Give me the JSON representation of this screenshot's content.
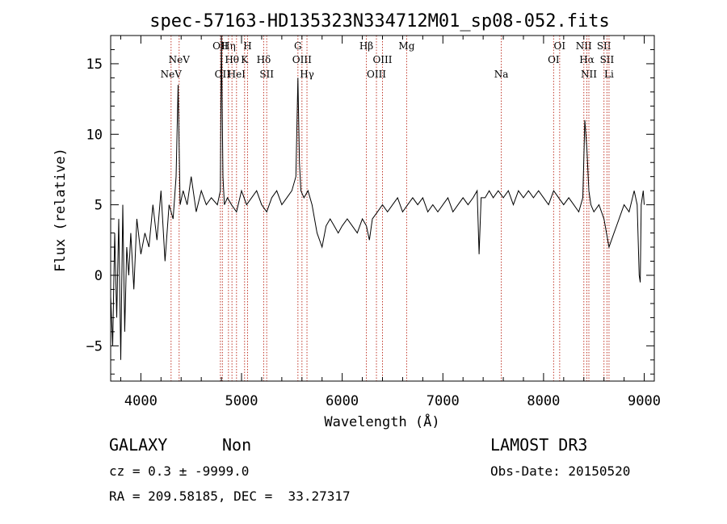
{
  "chart_data": {
    "type": "line",
    "title": "spec-57163-HD135323N334712M01_sp08-052.fits",
    "xlabel": "Wavelength (Å)",
    "ylabel": "Flux (relative)",
    "xlim": [
      3700,
      9100
    ],
    "ylim": [
      -7.5,
      17
    ],
    "xticks": [
      4000,
      5000,
      6000,
      7000,
      8000,
      9000
    ],
    "yticks": [
      -5,
      0,
      5,
      10,
      15
    ],
    "series": [
      {
        "name": "flux",
        "x": [
          3700,
          3720,
          3740,
          3760,
          3780,
          3800,
          3820,
          3840,
          3860,
          3880,
          3900,
          3930,
          3960,
          4000,
          4040,
          4080,
          4120,
          4160,
          4200,
          4240,
          4280,
          4320,
          4350,
          4370,
          4390,
          4420,
          4460,
          4500,
          4550,
          4600,
          4650,
          4700,
          4760,
          4790,
          4800,
          4815,
          4830,
          4860,
          4900,
          4950,
          5000,
          5050,
          5100,
          5150,
          5200,
          5250,
          5300,
          5350,
          5400,
          5450,
          5500,
          5540,
          5560,
          5575,
          5590,
          5620,
          5660,
          5700,
          5750,
          5800,
          5840,
          5880,
          5920,
          5960,
          6000,
          6050,
          6100,
          6150,
          6200,
          6240,
          6270,
          6300,
          6350,
          6400,
          6450,
          6500,
          6550,
          6600,
          6650,
          6700,
          6750,
          6800,
          6850,
          6900,
          6950,
          7000,
          7050,
          7100,
          7150,
          7200,
          7250,
          7300,
          7340,
          7360,
          7380,
          7420,
          7460,
          7500,
          7550,
          7600,
          7650,
          7700,
          7750,
          7800,
          7850,
          7900,
          7950,
          8000,
          8050,
          8100,
          8150,
          8200,
          8250,
          8300,
          8350,
          8390,
          8410,
          8430,
          8450,
          8470,
          8500,
          8550,
          8600,
          8650,
          8700,
          8750,
          8800,
          8850,
          8900,
          8930,
          8950,
          8960,
          8970,
          8990,
          9000
        ],
        "values": [
          -1.5,
          -5,
          3,
          -3,
          4,
          -6,
          5,
          -4,
          2,
          0,
          3,
          -1,
          4,
          1.5,
          3,
          2,
          5,
          2.5,
          6,
          1,
          5,
          4,
          7,
          13.5,
          5,
          6,
          5,
          7,
          4.5,
          6,
          5,
          5.5,
          5,
          6,
          17,
          7,
          5,
          5.5,
          5,
          4.5,
          6,
          5,
          5.5,
          6,
          5,
          4.5,
          5.5,
          6,
          5,
          5.5,
          6,
          7,
          14,
          8,
          6,
          5.5,
          6,
          5,
          3,
          2,
          3.5,
          4,
          3.5,
          3,
          3.5,
          4,
          3.5,
          3,
          4,
          3.5,
          2.5,
          4,
          4.5,
          5,
          4.5,
          5,
          5.5,
          4.5,
          5,
          5.5,
          5,
          5.5,
          4.5,
          5,
          4.5,
          5,
          5.5,
          4.5,
          5,
          5.5,
          5,
          5.5,
          6,
          1.5,
          5.5,
          5.5,
          6,
          5.5,
          6,
          5.5,
          6,
          5,
          6,
          5.5,
          6,
          5.5,
          6,
          5.5,
          5,
          6,
          5.5,
          5,
          5.5,
          5,
          4.5,
          5.5,
          11,
          9,
          6,
          5,
          4.5,
          5,
          4,
          2,
          3,
          4,
          5,
          4.5,
          6,
          5,
          0,
          -0.5,
          5,
          6,
          5
        ]
      }
    ],
    "lines": [
      {
        "wl": 4300,
        "label": "NeV",
        "row": 3
      },
      {
        "wl": 4380,
        "label": "NeV",
        "row": 2
      },
      {
        "wl": 4790,
        "label": "OII",
        "row": 1
      },
      {
        "wl": 4810,
        "label": "OII",
        "row": 3
      },
      {
        "wl": 4870,
        "label": "Hη",
        "row": 1
      },
      {
        "wl": 4905,
        "label": "Hθ",
        "row": 2
      },
      {
        "wl": 4950,
        "label": "HeI",
        "row": 3
      },
      {
        "wl": 5030,
        "label": "K",
        "row": 2
      },
      {
        "wl": 5060,
        "label": "H",
        "row": 1
      },
      {
        "wl": 5220,
        "label": "Hδ",
        "row": 2
      },
      {
        "wl": 5250,
        "label": "SII",
        "row": 3
      },
      {
        "wl": 5560,
        "label": "G",
        "row": 1
      },
      {
        "wl": 5600,
        "label": "OIII",
        "row": 2
      },
      {
        "wl": 5650,
        "label": "Hγ",
        "row": 3
      },
      {
        "wl": 6240,
        "label": "Hβ",
        "row": 1
      },
      {
        "wl": 6340,
        "label": "OIII",
        "row": 3
      },
      {
        "wl": 6400,
        "label": "OIII",
        "row": 2
      },
      {
        "wl": 6640,
        "label": "Mg",
        "row": 1
      },
      {
        "wl": 7580,
        "label": "Na",
        "row": 3
      },
      {
        "wl": 8100,
        "label": "OI",
        "row": 2
      },
      {
        "wl": 8160,
        "label": "OI",
        "row": 1
      },
      {
        "wl": 8400,
        "label": "NII",
        "row": 1
      },
      {
        "wl": 8430,
        "label": "Hα",
        "row": 2
      },
      {
        "wl": 8450,
        "label": "NII",
        "row": 3
      },
      {
        "wl": 8600,
        "label": "SII",
        "row": 1
      },
      {
        "wl": 8630,
        "label": "SII",
        "row": 2
      },
      {
        "wl": 8650,
        "label": "Li",
        "row": 3
      }
    ]
  },
  "footer": {
    "class": "GALAXY",
    "subclass": "Non",
    "survey": "LAMOST DR3",
    "cz": "cz = 0.3 ± -9999.0",
    "obsdate": "Obs-Date: 20150520",
    "radec": "RA = 209.58185, DEC =  33.27317"
  },
  "colors": {
    "ink": "#000000",
    "line_marker": "#c0392b",
    "background": "#ffffff"
  }
}
